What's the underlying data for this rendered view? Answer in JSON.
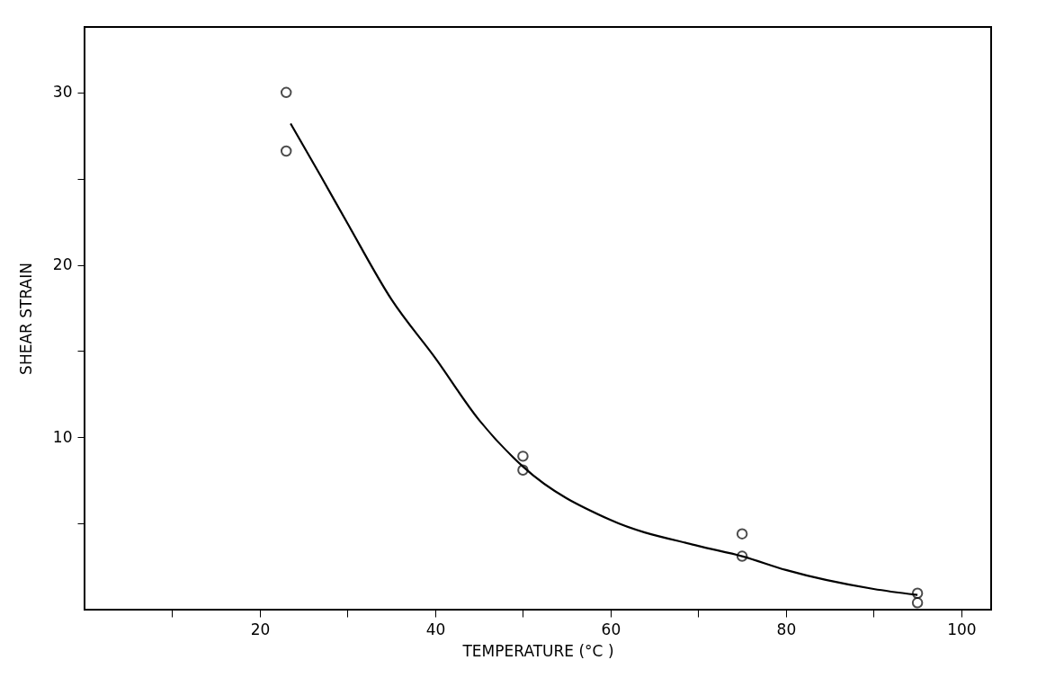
{
  "chart_data": {
    "type": "scatter",
    "xlabel": "TEMPERATURE  (°C )",
    "ylabel": "SHEAR  STRAIN",
    "xlim": [
      0,
      103.4
    ],
    "ylim": [
      0,
      33.8
    ],
    "xticks": [
      {
        "value": 10,
        "label": null
      },
      20,
      {
        "value": 30,
        "label": null
      },
      40,
      {
        "value": 50,
        "label": null
      },
      60,
      {
        "value": 70,
        "label": null
      },
      80,
      {
        "value": 90,
        "label": null
      },
      100
    ],
    "yticks": [
      {
        "value": 5,
        "label": null
      },
      10,
      {
        "value": 15,
        "label": null
      },
      20,
      {
        "value": 25,
        "label": null
      },
      30
    ],
    "grid": false,
    "series": [
      {
        "color": "#000000",
        "marker": "circle",
        "x": [
          23,
          23,
          50,
          50,
          75,
          75,
          95,
          95
        ],
        "values": [
          30.0,
          26.6,
          8.9,
          8.1,
          4.4,
          3.1,
          0.95,
          0.4
        ]
      },
      {
        "type": "line",
        "color": "#000000",
        "marker": "none",
        "line_style": "solid",
        "x": [
          23.5,
          27,
          30,
          35,
          40,
          45,
          50,
          60,
          70,
          75,
          80,
          90,
          95
        ],
        "values": [
          28.2,
          25.1,
          22.4,
          18.0,
          14.6,
          11.0,
          8.3,
          5.2,
          3.7,
          3.1,
          2.3,
          1.2,
          0.85
        ]
      }
    ]
  }
}
